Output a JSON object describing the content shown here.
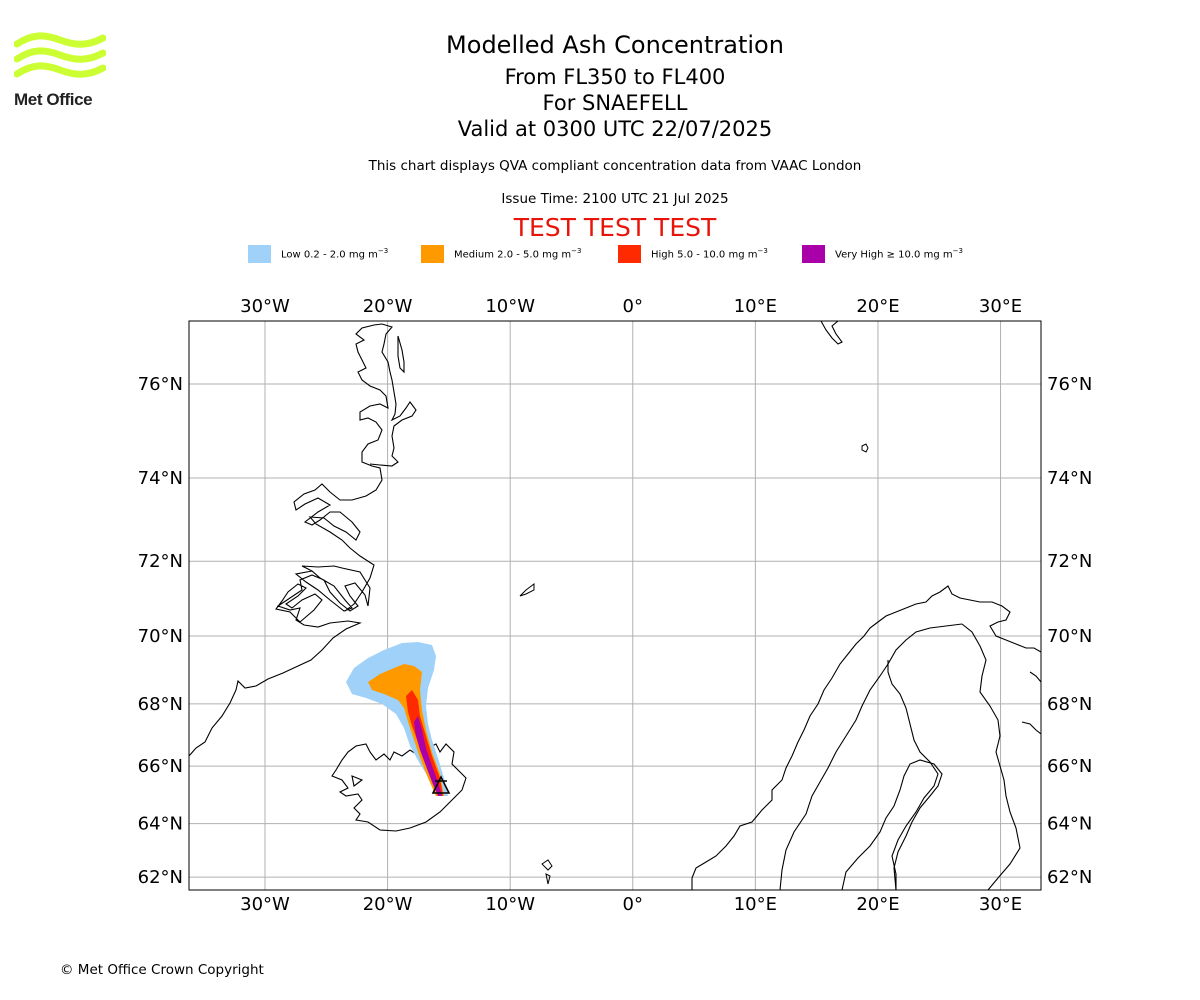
{
  "header": {
    "title": "Modelled Ash Concentration",
    "levels": "From FL350 to FL400",
    "volcano": "For SNAEFELL",
    "valid": "Valid at 0300 UTC 22/07/2025",
    "note": "This chart displays QVA compliant concentration data from VAAC London",
    "issue": "Issue Time: 2100 UTC 21 Jul 2025",
    "test_banner": "TEST TEST TEST"
  },
  "logo": {
    "text": "Met Office",
    "icon": "met-office-waves-logo",
    "color": "#ccff33"
  },
  "legend": [
    {
      "label": "Low 0.2 - 2.0 mg m",
      "unit_exp": "−3",
      "color": "#a0d2f9"
    },
    {
      "label": "Medium 2.0 - 5.0 mg m",
      "unit_exp": "−3",
      "color": "#ff9900"
    },
    {
      "label": "High 5.0 - 10.0 mg m",
      "unit_exp": "−3",
      "color": "#ff2a00"
    },
    {
      "label": "Very High  ≥  10.0 mg m",
      "unit_exp": "−3",
      "color": "#aa00aa"
    }
  ],
  "map": {
    "lon_ticks": [
      "30°W",
      "20°W",
      "10°W",
      "0°",
      "10°E",
      "20°E",
      "30°E"
    ],
    "lon_values": [
      -30,
      -20,
      -10,
      0,
      10,
      20,
      30
    ],
    "lat_ticks": [
      "76°N",
      "74°N",
      "72°N",
      "70°N",
      "68°N",
      "66°N",
      "64°N",
      "62°N"
    ],
    "lat_values": [
      76,
      74,
      72,
      70,
      68,
      66,
      64,
      62
    ],
    "lon_range": [
      -36.2,
      33.3
    ],
    "lat_range": [
      61.5,
      77.2
    ],
    "grid": true,
    "volcano_marker": {
      "name": "Snaefell",
      "lon": -15.6,
      "lat": 64.8,
      "icon": "volcano-triangle-icon"
    }
  },
  "footer": {
    "copyright": "© Met Office Crown Copyright"
  }
}
